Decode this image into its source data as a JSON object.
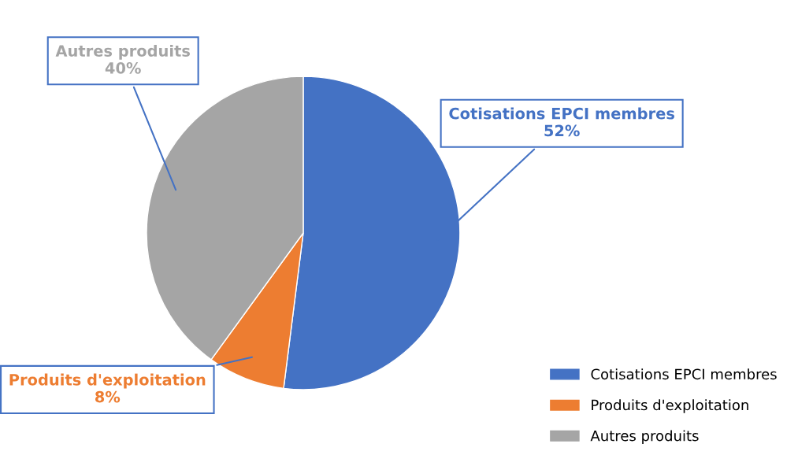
{
  "chart_data": {
    "type": "pie",
    "categories": [
      "Cotisations EPCI membres",
      "Produits d'exploitation",
      "Autres produits"
    ],
    "values": [
      52,
      8,
      40
    ],
    "colors": [
      "#4472c4",
      "#ed7d31",
      "#a5a5a5"
    ],
    "value_labels": [
      "52%",
      "8%",
      "40%"
    ],
    "legend": "bottom right"
  }
}
